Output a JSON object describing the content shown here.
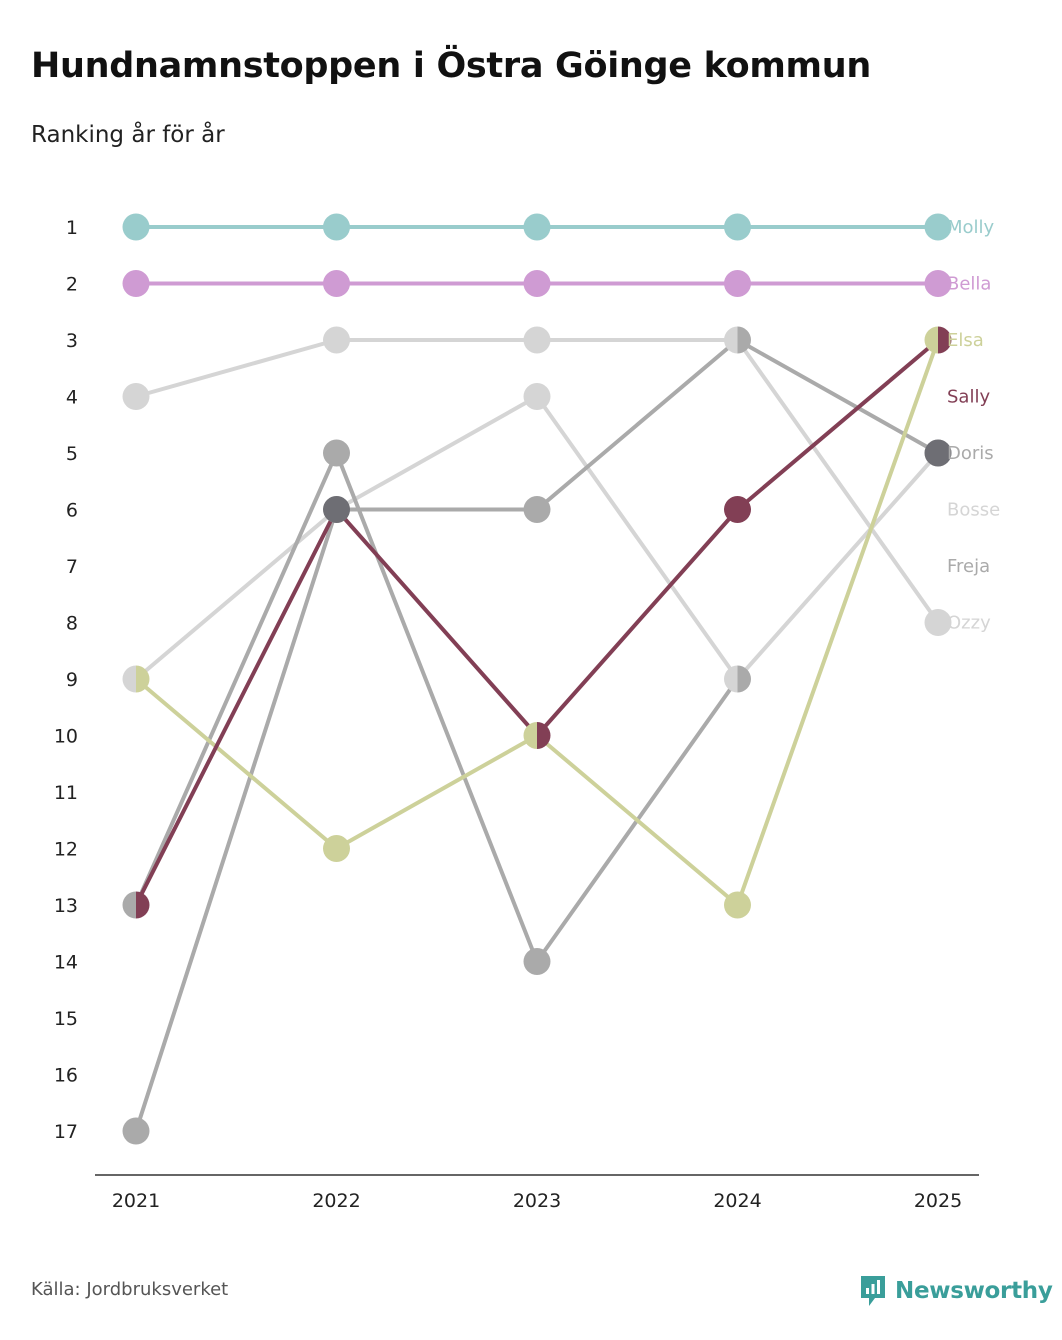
{
  "title": "Hundnamnstoppen i Östra Göinge kommun",
  "subtitle": "Ranking år för år",
  "source": "Källa: Jordbruksverket",
  "brand": {
    "name": "Newsworthy",
    "icon": "newsworthy-logo-icon",
    "color": "#3a9e9a"
  },
  "chart_data": {
    "type": "line",
    "subtype": "bump",
    "title": "Hundnamnstoppen i Östra Göinge kommun",
    "subtitle": "Ranking år för år",
    "xlabel": "",
    "ylabel": "",
    "x": [
      "2021",
      "2022",
      "2023",
      "2024",
      "2025"
    ],
    "y_ticks": [
      "1",
      "2",
      "3",
      "4",
      "5",
      "6",
      "7",
      "8",
      "9",
      "10",
      "11",
      "12",
      "13",
      "14",
      "15",
      "16",
      "17"
    ],
    "ylim": [
      1,
      17
    ],
    "y_inverted": true,
    "grid": false,
    "legend": "direct labels at right end",
    "series": [
      {
        "name": "Ozzy",
        "color": "#d5d5d5",
        "values": [
          4,
          3,
          3,
          3,
          8
        ]
      },
      {
        "name": "Bosse",
        "color": "#d5d5d5",
        "values": [
          9,
          6,
          4,
          9,
          5
        ]
      },
      {
        "name": "Freja",
        "color": "#aaaaaa",
        "values": [
          13,
          5,
          14,
          9,
          null
        ]
      },
      {
        "name": "Doris",
        "color": "#aaaaaa",
        "values": [
          17,
          6,
          6,
          3,
          5
        ]
      },
      {
        "name": "Elsa",
        "color": "#cdd19a",
        "values": [
          9,
          12,
          10,
          13,
          3
        ]
      },
      {
        "name": "Sally",
        "color": "#823f55",
        "values": [
          13,
          6,
          10,
          6,
          3
        ]
      },
      {
        "name": "Bella",
        "color": "#cf9bd3",
        "values": [
          2,
          2,
          2,
          2,
          2
        ]
      },
      {
        "name": "Molly",
        "color": "#99cccc",
        "values": [
          1,
          1,
          1,
          1,
          1
        ]
      }
    ],
    "end_labels": [
      {
        "name": "Molly",
        "rank": 1,
        "color": "#99cccc"
      },
      {
        "name": "Bella",
        "rank": 2,
        "color": "#cf9bd3"
      },
      {
        "name": "Elsa",
        "rank": 3,
        "color": "#cdd19a"
      },
      {
        "name": "Sally",
        "rank": 4,
        "color": "#823f55"
      },
      {
        "name": "Doris",
        "rank": 5,
        "color": "#aaaaaa"
      },
      {
        "name": "Bosse",
        "rank": 6,
        "color": "#d5d5d5"
      },
      {
        "name": "Freja",
        "rank": 7,
        "color": "#aaaaaa"
      },
      {
        "name": "Ozzy",
        "rank": 8,
        "color": "#d5d5d5"
      }
    ]
  }
}
